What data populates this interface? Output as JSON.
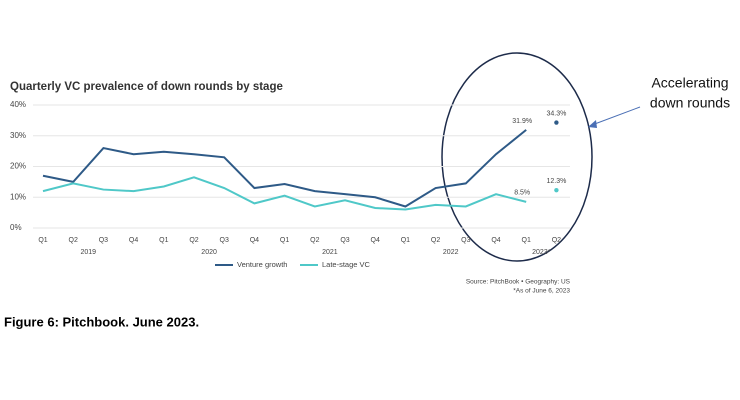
{
  "chart_data": {
    "type": "line",
    "title": "Quarterly VC prevalence of down rounds by stage",
    "categories": [
      "Q1",
      "Q2",
      "Q3",
      "Q4",
      "Q1",
      "Q2",
      "Q3",
      "Q4",
      "Q1",
      "Q2",
      "Q3",
      "Q4",
      "Q1",
      "Q2",
      "Q3",
      "Q4",
      "Q1",
      "Q2"
    ],
    "year_labels": [
      "2019",
      "2020",
      "2021",
      "2022",
      "2023*"
    ],
    "series": [
      {
        "name": "Venture growth",
        "color": "#2e5a87",
        "values": [
          17,
          15,
          26,
          24,
          24.8,
          24,
          23,
          13,
          14.3,
          12,
          11,
          10,
          7,
          13,
          14.5,
          24,
          31.9,
          34.3
        ],
        "value_labels": [
          null,
          null,
          null,
          null,
          null,
          null,
          null,
          null,
          null,
          null,
          null,
          null,
          null,
          null,
          null,
          null,
          "31.9%",
          "34.3%"
        ]
      },
      {
        "name": "Late-stage VC",
        "color": "#4fc8c8",
        "values": [
          12,
          14.5,
          12.5,
          12,
          13.5,
          16.5,
          13,
          8,
          10.5,
          7,
          9,
          6.5,
          6,
          7.5,
          7,
          11,
          8.5,
          12.3
        ],
        "value_labels": [
          null,
          null,
          null,
          null,
          null,
          null,
          null,
          null,
          null,
          null,
          null,
          null,
          null,
          null,
          null,
          null,
          "8.5%",
          "12.3%"
        ]
      }
    ],
    "ylim": [
      0,
      40
    ],
    "yticks": [
      {
        "value": 0,
        "label": "0%"
      },
      {
        "value": 10,
        "label": "10%"
      },
      {
        "value": 20,
        "label": "20%"
      },
      {
        "value": 30,
        "label": "30%"
      },
      {
        "value": 40,
        "label": "40%"
      }
    ],
    "grid": true,
    "source": [
      "Source: PitchBook • Geography: US",
      "*As of June 6, 2023"
    ],
    "annotation": [
      "Accelerating",
      "down rounds"
    ],
    "caption": "Figure 6: Pitchbook. June 2023."
  }
}
